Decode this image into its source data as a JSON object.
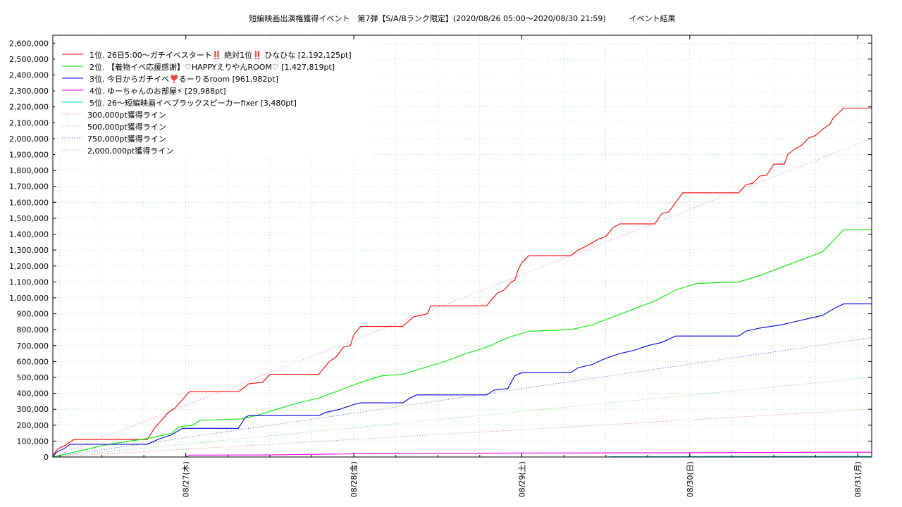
{
  "chart_data": {
    "type": "line",
    "title": "短編映画出演権獲得イベント　第7弾【S/A/Bランク限定】(2020/08/26 05:00〜2020/08/30 21:59)　　　イベント結果",
    "xlabel": "",
    "ylabel": "",
    "ylim": [
      0,
      2650000
    ],
    "y_ticks": [
      0,
      100000,
      200000,
      300000,
      400000,
      500000,
      600000,
      700000,
      800000,
      900000,
      1000000,
      1100000,
      1200000,
      1300000,
      1400000,
      1500000,
      1600000,
      1700000,
      1800000,
      1900000,
      2000000,
      2100000,
      2200000,
      2300000,
      2400000,
      2500000,
      2600000
    ],
    "y_tick_labels": [
      "0",
      "100,000",
      "200,000",
      "300,000",
      "400,000",
      "500,000",
      "600,000",
      "700,000",
      "800,000",
      "900,000",
      "1,000,000",
      "1,100,000",
      "1,200,000",
      "1,300,000",
      "1,400,000",
      "1,500,000",
      "1,600,000",
      "1,700,000",
      "1,800,000",
      "1,900,000",
      "2,000,000",
      "2,100,000",
      "2,200,000",
      "2,300,000",
      "2,400,000",
      "2,500,000",
      "2,600,000"
    ],
    "xlim": [
      "2020-08-26T05:00",
      "2020-08-31T02:00"
    ],
    "x_ticks": [
      "2020-08-27T00:00",
      "2020-08-28T00:00",
      "2020-08-29T00:00",
      "2020-08-30T00:00",
      "2020-08-31T00:00"
    ],
    "x_tick_labels": [
      "08/27(木)",
      "08/28(金)",
      "08/29(土)",
      "08/30(日)",
      "08/31(月)"
    ],
    "grid": true,
    "legend_position": "top-left",
    "series": [
      {
        "name": "1位. 26日5:00〜ガチイベスタート‼️ 絶対1位‼️ ひなひな [2,192,125pt]",
        "color": "#ff0000",
        "style": "solid",
        "points": [
          [
            "2020-08-26T05:00",
            0
          ],
          [
            "2020-08-26T05:10",
            20000
          ],
          [
            "2020-08-26T05:40",
            50000
          ],
          [
            "2020-08-26T06:50",
            75000
          ],
          [
            "2020-08-26T08:00",
            110000
          ],
          [
            "2020-08-26T18:30",
            110000
          ],
          [
            "2020-08-26T19:30",
            180000
          ],
          [
            "2020-08-26T20:30",
            230000
          ],
          [
            "2020-08-26T21:30",
            280000
          ],
          [
            "2020-08-26T22:30",
            310000
          ],
          [
            "2020-08-26T23:30",
            360000
          ],
          [
            "2020-08-27T00:30",
            410000
          ],
          [
            "2020-08-27T07:30",
            410000
          ],
          [
            "2020-08-27T09:00",
            460000
          ],
          [
            "2020-08-27T11:00",
            470000
          ],
          [
            "2020-08-27T12:00",
            520000
          ],
          [
            "2020-08-27T19:00",
            520000
          ],
          [
            "2020-08-27T20:30",
            600000
          ],
          [
            "2020-08-27T21:30",
            630000
          ],
          [
            "2020-08-27T22:30",
            690000
          ],
          [
            "2020-08-27T23:30",
            700000
          ],
          [
            "2020-08-28T00:00",
            770000
          ],
          [
            "2020-08-28T01:00",
            820000
          ],
          [
            "2020-08-28T07:00",
            820000
          ],
          [
            "2020-08-28T07:30",
            840000
          ],
          [
            "2020-08-28T08:30",
            880000
          ],
          [
            "2020-08-28T10:30",
            900000
          ],
          [
            "2020-08-28T11:00",
            950000
          ],
          [
            "2020-08-28T19:00",
            950000
          ],
          [
            "2020-08-28T19:30",
            980000
          ],
          [
            "2020-08-28T20:30",
            1030000
          ],
          [
            "2020-08-28T21:30",
            1050000
          ],
          [
            "2020-08-28T22:30",
            1100000
          ],
          [
            "2020-08-28T23:00",
            1110000
          ],
          [
            "2020-08-28T23:30",
            1180000
          ],
          [
            "2020-08-29T00:00",
            1220000
          ],
          [
            "2020-08-29T01:00",
            1265000
          ],
          [
            "2020-08-29T07:00",
            1265000
          ],
          [
            "2020-08-29T08:00",
            1300000
          ],
          [
            "2020-08-29T09:00",
            1320000
          ],
          [
            "2020-08-29T10:00",
            1345000
          ],
          [
            "2020-08-29T11:00",
            1370000
          ],
          [
            "2020-08-29T12:00",
            1385000
          ],
          [
            "2020-08-29T13:00",
            1440000
          ],
          [
            "2020-08-29T14:00",
            1465000
          ],
          [
            "2020-08-29T19:00",
            1465000
          ],
          [
            "2020-08-29T20:00",
            1530000
          ],
          [
            "2020-08-29T21:00",
            1540000
          ],
          [
            "2020-08-29T22:00",
            1600000
          ],
          [
            "2020-08-29T23:00",
            1660000
          ],
          [
            "2020-08-30T07:00",
            1660000
          ],
          [
            "2020-08-30T08:00",
            1710000
          ],
          [
            "2020-08-30T09:00",
            1720000
          ],
          [
            "2020-08-30T10:00",
            1765000
          ],
          [
            "2020-08-30T11:00",
            1770000
          ],
          [
            "2020-08-30T12:00",
            1840000
          ],
          [
            "2020-08-30T13:30",
            1840000
          ],
          [
            "2020-08-30T14:00",
            1900000
          ],
          [
            "2020-08-30T15:00",
            1935000
          ],
          [
            "2020-08-30T16:00",
            1960000
          ],
          [
            "2020-08-30T17:00",
            2005000
          ],
          [
            "2020-08-30T18:00",
            2020000
          ],
          [
            "2020-08-30T19:00",
            2060000
          ],
          [
            "2020-08-30T20:00",
            2090000
          ],
          [
            "2020-08-30T20:30",
            2130000
          ],
          [
            "2020-08-30T21:00",
            2150000
          ],
          [
            "2020-08-30T21:59",
            2192125
          ],
          [
            "2020-08-31T02:00",
            2192125
          ]
        ]
      },
      {
        "name": "2位. 【着物イベ応援感謝】♡HAPPYえりやんROOM♡ [1,427,819pt]",
        "color": "#00ee00",
        "style": "solid",
        "points": [
          [
            "2020-08-26T05:00",
            0
          ],
          [
            "2020-08-26T06:00",
            10000
          ],
          [
            "2020-08-26T08:00",
            30000
          ],
          [
            "2020-08-26T10:00",
            50000
          ],
          [
            "2020-08-26T13:00",
            80000
          ],
          [
            "2020-08-26T16:00",
            100000
          ],
          [
            "2020-08-26T19:00",
            120000
          ],
          [
            "2020-08-26T22:00",
            150000
          ],
          [
            "2020-08-26T23:00",
            190000
          ],
          [
            "2020-08-27T01:00",
            200000
          ],
          [
            "2020-08-27T02:00",
            230000
          ],
          [
            "2020-08-27T08:00",
            240000
          ],
          [
            "2020-08-27T10:00",
            260000
          ],
          [
            "2020-08-27T13:00",
            300000
          ],
          [
            "2020-08-27T16:00",
            340000
          ],
          [
            "2020-08-27T19:00",
            370000
          ],
          [
            "2020-08-27T22:00",
            420000
          ],
          [
            "2020-08-28T01:00",
            470000
          ],
          [
            "2020-08-28T04:00",
            510000
          ],
          [
            "2020-08-28T07:00",
            520000
          ],
          [
            "2020-08-28T10:00",
            560000
          ],
          [
            "2020-08-28T13:00",
            600000
          ],
          [
            "2020-08-28T16:00",
            650000
          ],
          [
            "2020-08-28T19:00",
            690000
          ],
          [
            "2020-08-28T22:00",
            750000
          ],
          [
            "2020-08-29T01:00",
            790000
          ],
          [
            "2020-08-29T07:00",
            800000
          ],
          [
            "2020-08-29T10:00",
            830000
          ],
          [
            "2020-08-29T13:00",
            880000
          ],
          [
            "2020-08-29T16:00",
            930000
          ],
          [
            "2020-08-29T19:00",
            980000
          ],
          [
            "2020-08-29T22:00",
            1050000
          ],
          [
            "2020-08-30T01:00",
            1090000
          ],
          [
            "2020-08-30T07:00",
            1100000
          ],
          [
            "2020-08-30T10:00",
            1140000
          ],
          [
            "2020-08-30T13:00",
            1190000
          ],
          [
            "2020-08-30T16:00",
            1240000
          ],
          [
            "2020-08-30T19:00",
            1290000
          ],
          [
            "2020-08-30T20:30",
            1360000
          ],
          [
            "2020-08-30T21:59",
            1427819
          ],
          [
            "2020-08-31T02:00",
            1427819
          ]
        ]
      },
      {
        "name": "3位. 今日からガチイベ❣️るーりるroom [961,982pt]",
        "color": "#0000dd",
        "style": "solid",
        "points": [
          [
            "2020-08-26T05:00",
            0
          ],
          [
            "2020-08-26T05:30",
            30000
          ],
          [
            "2020-08-26T06:30",
            50000
          ],
          [
            "2020-08-26T07:30",
            80000
          ],
          [
            "2020-08-26T18:30",
            80000
          ],
          [
            "2020-08-26T20:00",
            110000
          ],
          [
            "2020-08-26T22:00",
            140000
          ],
          [
            "2020-08-26T23:30",
            180000
          ],
          [
            "2020-08-27T07:30",
            180000
          ],
          [
            "2020-08-27T08:30",
            250000
          ],
          [
            "2020-08-27T09:00",
            260000
          ],
          [
            "2020-08-27T19:00",
            260000
          ],
          [
            "2020-08-27T20:00",
            280000
          ],
          [
            "2020-08-27T22:00",
            300000
          ],
          [
            "2020-08-28T00:00",
            330000
          ],
          [
            "2020-08-28T01:00",
            340000
          ],
          [
            "2020-08-28T07:00",
            340000
          ],
          [
            "2020-08-28T08:00",
            370000
          ],
          [
            "2020-08-28T09:00",
            390000
          ],
          [
            "2020-08-28T19:00",
            390000
          ],
          [
            "2020-08-28T20:00",
            420000
          ],
          [
            "2020-08-28T22:00",
            430000
          ],
          [
            "2020-08-28T22:30",
            470000
          ],
          [
            "2020-08-28T23:00",
            510000
          ],
          [
            "2020-08-29T00:00",
            530000
          ],
          [
            "2020-08-29T07:00",
            530000
          ],
          [
            "2020-08-29T08:00",
            560000
          ],
          [
            "2020-08-29T10:00",
            580000
          ],
          [
            "2020-08-29T12:00",
            620000
          ],
          [
            "2020-08-29T14:00",
            650000
          ],
          [
            "2020-08-29T16:00",
            670000
          ],
          [
            "2020-08-29T18:00",
            700000
          ],
          [
            "2020-08-29T20:00",
            720000
          ],
          [
            "2020-08-29T22:00",
            760000
          ],
          [
            "2020-08-30T07:00",
            760000
          ],
          [
            "2020-08-30T08:00",
            790000
          ],
          [
            "2020-08-30T10:00",
            810000
          ],
          [
            "2020-08-30T13:00",
            830000
          ],
          [
            "2020-08-30T15:00",
            850000
          ],
          [
            "2020-08-30T17:00",
            870000
          ],
          [
            "2020-08-30T19:00",
            890000
          ],
          [
            "2020-08-30T20:30",
            930000
          ],
          [
            "2020-08-30T21:59",
            961982
          ],
          [
            "2020-08-31T02:00",
            961982
          ]
        ]
      },
      {
        "name": "4位. ゆーちゃんのお部屋⚡ [29,988pt]",
        "color": "#ee00ee",
        "style": "solid",
        "points": [
          [
            "2020-08-26T05:00",
            0
          ],
          [
            "2020-08-27T00:00",
            0
          ],
          [
            "2020-08-27T00:30",
            12000
          ],
          [
            "2020-08-27T12:00",
            13000
          ],
          [
            "2020-08-28T00:00",
            20000
          ],
          [
            "2020-08-29T00:00",
            25000
          ],
          [
            "2020-08-30T00:00",
            27000
          ],
          [
            "2020-08-30T21:00",
            29988
          ],
          [
            "2020-08-31T02:00",
            29988
          ]
        ]
      },
      {
        "name": "5位. 26〜短編映画イベブラックスピーカーfixer [3,480pt]",
        "color": "#00cccc",
        "style": "solid",
        "points": [
          [
            "2020-08-26T05:00",
            0
          ],
          [
            "2020-08-29T12:00",
            0
          ],
          [
            "2020-08-29T13:00",
            2500
          ],
          [
            "2020-08-30T21:59",
            3480
          ],
          [
            "2020-08-31T02:00",
            3480
          ]
        ]
      },
      {
        "name": "300,000pt獲得ライン",
        "color": "#e06060",
        "style": "dotted",
        "points": [
          [
            "2020-08-26T05:00",
            0
          ],
          [
            "2020-08-31T02:00",
            300000
          ]
        ]
      },
      {
        "name": "500,000pt獲得ライン",
        "color": "#60cc60",
        "style": "dotted",
        "points": [
          [
            "2020-08-26T05:00",
            0
          ],
          [
            "2020-08-31T02:00",
            500000
          ]
        ]
      },
      {
        "name": "750,000pt獲得ライン",
        "color": "#4040dd",
        "style": "dotted",
        "points": [
          [
            "2020-08-26T05:00",
            0
          ],
          [
            "2020-08-31T02:00",
            750000
          ]
        ]
      },
      {
        "name": "2,000,000pt獲得ライン",
        "color": "#dd60dd",
        "style": "dotted",
        "points": [
          [
            "2020-08-26T05:00",
            0
          ],
          [
            "2020-08-31T02:00",
            2000000
          ]
        ]
      }
    ]
  }
}
